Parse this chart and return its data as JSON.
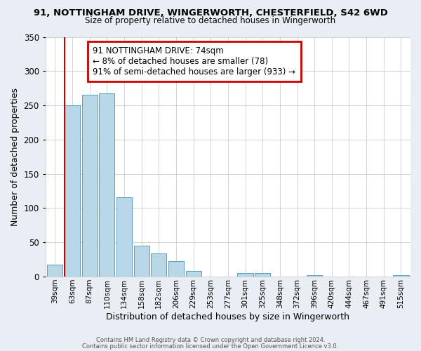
{
  "title": "91, NOTTINGHAM DRIVE, WINGERWORTH, CHESTERFIELD, S42 6WD",
  "subtitle": "Size of property relative to detached houses in Wingerworth",
  "xlabel": "Distribution of detached houses by size in Wingerworth",
  "ylabel": "Number of detached properties",
  "bar_labels": [
    "39sqm",
    "63sqm",
    "87sqm",
    "110sqm",
    "134sqm",
    "158sqm",
    "182sqm",
    "206sqm",
    "229sqm",
    "253sqm",
    "277sqm",
    "301sqm",
    "325sqm",
    "348sqm",
    "372sqm",
    "396sqm",
    "420sqm",
    "444sqm",
    "467sqm",
    "491sqm",
    "515sqm"
  ],
  "bar_heights": [
    17,
    250,
    265,
    267,
    116,
    45,
    34,
    23,
    8,
    0,
    0,
    5,
    5,
    0,
    0,
    2,
    0,
    0,
    0,
    0,
    2
  ],
  "bar_color": "#b8d8e8",
  "bar_edge_color": "#5a9fc0",
  "ylim": [
    0,
    350
  ],
  "yticks": [
    0,
    50,
    100,
    150,
    200,
    250,
    300,
    350
  ],
  "vline_color": "#cc0000",
  "annotation_title": "91 NOTTINGHAM DRIVE: 74sqm",
  "annotation_line1": "← 8% of detached houses are smaller (78)",
  "annotation_line2": "91% of semi-detached houses are larger (933) →",
  "annotation_box_color": "#cc0000",
  "footer1": "Contains HM Land Registry data © Crown copyright and database right 2024.",
  "footer2": "Contains public sector information licensed under the Open Government Licence v3.0.",
  "bg_color": "#e8eef4",
  "plot_bg_color": "#ffffff"
}
